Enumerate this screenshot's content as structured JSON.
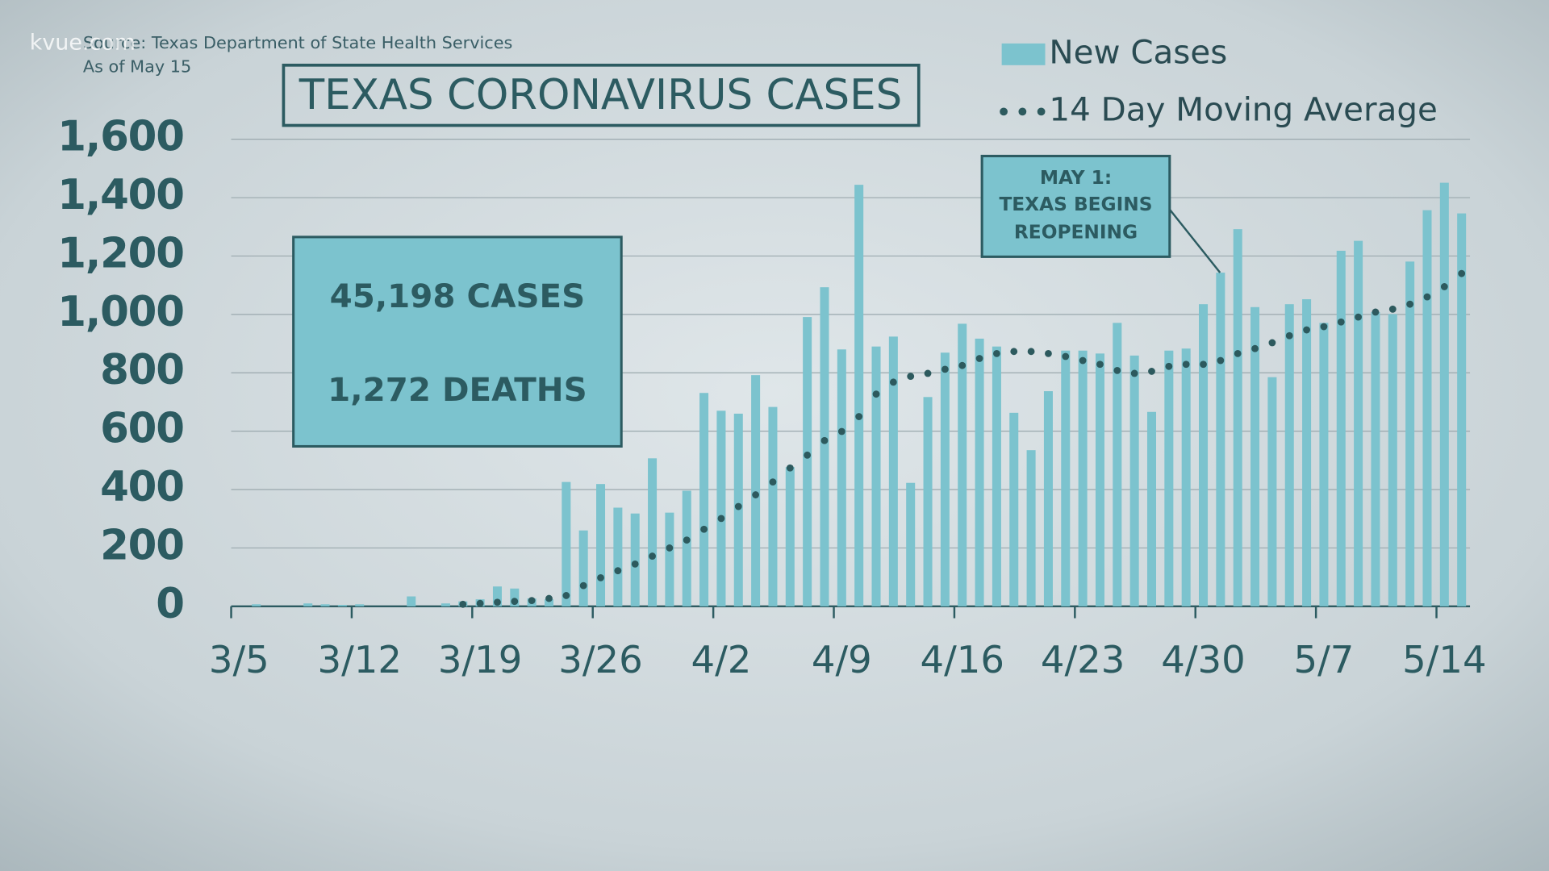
{
  "chart_data": {
    "type": "bar",
    "title": "TEXAS CORONAVIRUS CASES",
    "source": "Source: Texas Department of State Health Services",
    "as_of": "As of May 15",
    "watermark": "kvue.com",
    "annotations": {
      "cases": "45,198 CASES",
      "deaths": "1,272 DEATHS",
      "reopening": [
        "MAY 1:",
        "TEXAS BEGINS",
        "REOPENING"
      ]
    },
    "categories": [
      "3/5",
      null,
      null,
      null,
      null,
      null,
      null,
      "3/12",
      null,
      null,
      null,
      null,
      null,
      null,
      "3/19",
      null,
      null,
      null,
      null,
      null,
      null,
      "3/26",
      null,
      null,
      null,
      null,
      null,
      null,
      "4/2",
      null,
      null,
      null,
      null,
      null,
      null,
      "4/9",
      null,
      null,
      null,
      null,
      null,
      null,
      "4/16",
      null,
      null,
      null,
      null,
      null,
      null,
      "4/23",
      null,
      null,
      null,
      null,
      null,
      null,
      "4/30",
      null,
      null,
      null,
      null,
      null,
      null,
      "5/7",
      null,
      null,
      null,
      null,
      null,
      null,
      "5/14",
      null
    ],
    "series": [
      {
        "name": "New Cases",
        "type": "bar",
        "color": "#7cc3ce",
        "values": [
          0,
          7,
          0,
          0,
          10,
          7,
          5,
          7,
          0,
          0,
          34,
          0,
          10,
          17,
          24,
          68,
          61,
          27,
          24,
          426,
          260,
          419,
          338,
          318,
          507,
          321,
          396,
          731,
          670,
          660,
          792,
          683,
          477,
          991,
          1093,
          880,
          1444,
          890,
          924,
          423,
          717,
          869,
          968,
          917,
          890,
          663,
          535,
          737,
          876,
          876,
          866,
          971,
          859,
          666,
          876,
          883,
          1035,
          1143,
          1292,
          1025,
          785,
          1035,
          1052,
          971,
          1218,
          1252,
          1008,
          1001,
          1181,
          1357,
          1451,
          1346
        ]
      },
      {
        "name": "14 Day Moving Average",
        "type": "line",
        "style": "dotted",
        "color": "#2d5a5e",
        "values": [
          null,
          null,
          null,
          null,
          null,
          null,
          null,
          null,
          null,
          null,
          null,
          null,
          null,
          7,
          10,
          14,
          17,
          20,
          27,
          37,
          71,
          98,
          122,
          145,
          172,
          200,
          227,
          264,
          301,
          342,
          382,
          426,
          474,
          518,
          568,
          599,
          650,
          727,
          768,
          788,
          798,
          812,
          825,
          849,
          866,
          873,
          873,
          866,
          856,
          842,
          829,
          808,
          798,
          805,
          822,
          829,
          829,
          842,
          866,
          883,
          903,
          927,
          947,
          958,
          974,
          991,
          1008,
          1018,
          1035,
          1060,
          1095,
          1140
        ]
      }
    ],
    "ylim": [
      0,
      1600
    ],
    "yticks": [
      0,
      200,
      400,
      600,
      800,
      {
        "value": 1000,
        "label": "1,000"
      },
      {
        "value": 1200,
        "label": "1,200"
      },
      {
        "value": 1400,
        "label": "1,400"
      },
      {
        "value": 1600,
        "label": "1,600"
      }
    ],
    "grid": true
  }
}
